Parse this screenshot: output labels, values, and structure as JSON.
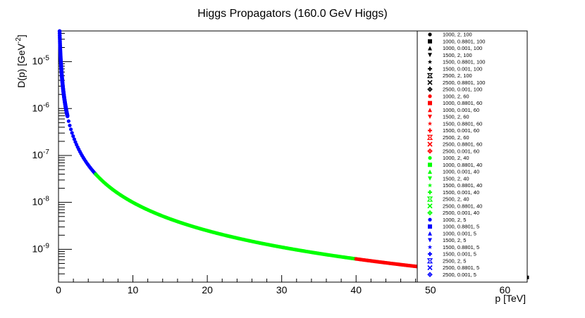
{
  "chart_data": {
    "type": "scatter",
    "title": "Higgs Propagators (160.0 GeV Higgs)",
    "xlabel": "p [TeV]",
    "ylabel_base": "D(p) [GeV",
    "ylabel_exp": "-2",
    "ylabel_close": "]",
    "xlim": [
      0,
      63
    ],
    "ylim": [
      2e-10,
      4.5e-05
    ],
    "yscale": "log",
    "x_ticks": [
      "0",
      "10",
      "20",
      "30",
      "40",
      "50",
      "60"
    ],
    "y_ticks": [
      {
        "base": "10",
        "exp": "-5"
      },
      {
        "base": "10",
        "exp": "-6"
      },
      {
        "base": "10",
        "exp": "-7"
      },
      {
        "base": "10",
        "exp": "-8"
      },
      {
        "base": "10",
        "exp": "-9"
      }
    ],
    "curve": {
      "description_free": true,
      "constant": 1e-06
    },
    "series": [
      {
        "name": "1000, 2, 100",
        "color": "#000000",
        "marker": "circle"
      },
      {
        "name": "1000, 0.8801, 100",
        "color": "#000000",
        "marker": "square"
      },
      {
        "name": "1000, 0.001, 100",
        "color": "#000000",
        "marker": "triangle-up"
      },
      {
        "name": "1500, 2, 100",
        "color": "#000000",
        "marker": "triangle-down"
      },
      {
        "name": "1500, 0.8801, 100",
        "color": "#000000",
        "marker": "star"
      },
      {
        "name": "1500, 0.001, 100",
        "color": "#000000",
        "marker": "cross"
      },
      {
        "name": "2500, 2, 100",
        "color": "#000000",
        "marker": "double-diamond"
      },
      {
        "name": "2500, 0.8801, 100",
        "color": "#000000",
        "marker": "x"
      },
      {
        "name": "2500, 0.001, 100",
        "color": "#000000",
        "marker": "open-cross"
      },
      {
        "name": "1000, 2, 60",
        "color": "#ff0000",
        "marker": "circle"
      },
      {
        "name": "1000, 0.8801, 60",
        "color": "#ff0000",
        "marker": "square"
      },
      {
        "name": "1000, 0.001, 60",
        "color": "#ff0000",
        "marker": "triangle-up"
      },
      {
        "name": "1500, 2, 60",
        "color": "#ff0000",
        "marker": "triangle-down"
      },
      {
        "name": "1500, 0.8801, 60",
        "color": "#ff0000",
        "marker": "star"
      },
      {
        "name": "1500, 0.001, 60",
        "color": "#ff0000",
        "marker": "cross"
      },
      {
        "name": "2500, 2, 60",
        "color": "#ff0000",
        "marker": "double-diamond"
      },
      {
        "name": "2500, 0.8801, 60",
        "color": "#ff0000",
        "marker": "x"
      },
      {
        "name": "2500, 0.001, 60",
        "color": "#ff0000",
        "marker": "open-cross"
      },
      {
        "name": "1000, 2, 40",
        "color": "#00ff00",
        "marker": "circle"
      },
      {
        "name": "1000, 0.8801, 40",
        "color": "#00ff00",
        "marker": "square"
      },
      {
        "name": "1000, 0.001, 40",
        "color": "#00ff00",
        "marker": "triangle-up"
      },
      {
        "name": "1500, 2, 40",
        "color": "#00ff00",
        "marker": "triangle-down"
      },
      {
        "name": "1500, 0.8801, 40",
        "color": "#00ff00",
        "marker": "star"
      },
      {
        "name": "1500, 0.001, 40",
        "color": "#00ff00",
        "marker": "cross"
      },
      {
        "name": "2500, 2, 40",
        "color": "#00ff00",
        "marker": "double-diamond"
      },
      {
        "name": "2500, 0.8801, 40",
        "color": "#00ff00",
        "marker": "x"
      },
      {
        "name": "2500, 0.001, 40",
        "color": "#00ff00",
        "marker": "open-cross"
      },
      {
        "name": "1000, 2, 5",
        "color": "#0000ff",
        "marker": "circle"
      },
      {
        "name": "1000, 0.8801, 5",
        "color": "#0000ff",
        "marker": "square"
      },
      {
        "name": "1000, 0.001, 5",
        "color": "#0000ff",
        "marker": "triangle-up"
      },
      {
        "name": "1500, 2, 5",
        "color": "#0000ff",
        "marker": "triangle-down"
      },
      {
        "name": "1500, 0.8801, 5",
        "color": "#0000ff",
        "marker": "star"
      },
      {
        "name": "1500, 0.001, 5",
        "color": "#0000ff",
        "marker": "cross"
      },
      {
        "name": "2500, 2, 5",
        "color": "#0000ff",
        "marker": "double-diamond"
      },
      {
        "name": "2500, 0.8801, 5",
        "color": "#0000ff",
        "marker": "x"
      },
      {
        "name": "2500, 0.001, 5",
        "color": "#0000ff",
        "marker": "open-cross"
      }
    ],
    "segments": [
      {
        "color": "#0000ff",
        "x_range": [
          0.15,
          5.0
        ]
      },
      {
        "color": "#00ff00",
        "x_range": [
          5.0,
          40.0
        ]
      },
      {
        "color": "#ff0000",
        "x_range": [
          40.0,
          60.0
        ]
      },
      {
        "color": "#000000",
        "x_range": [
          60.0,
          63.0
        ]
      }
    ],
    "grid": false,
    "legend_position": "right"
  }
}
